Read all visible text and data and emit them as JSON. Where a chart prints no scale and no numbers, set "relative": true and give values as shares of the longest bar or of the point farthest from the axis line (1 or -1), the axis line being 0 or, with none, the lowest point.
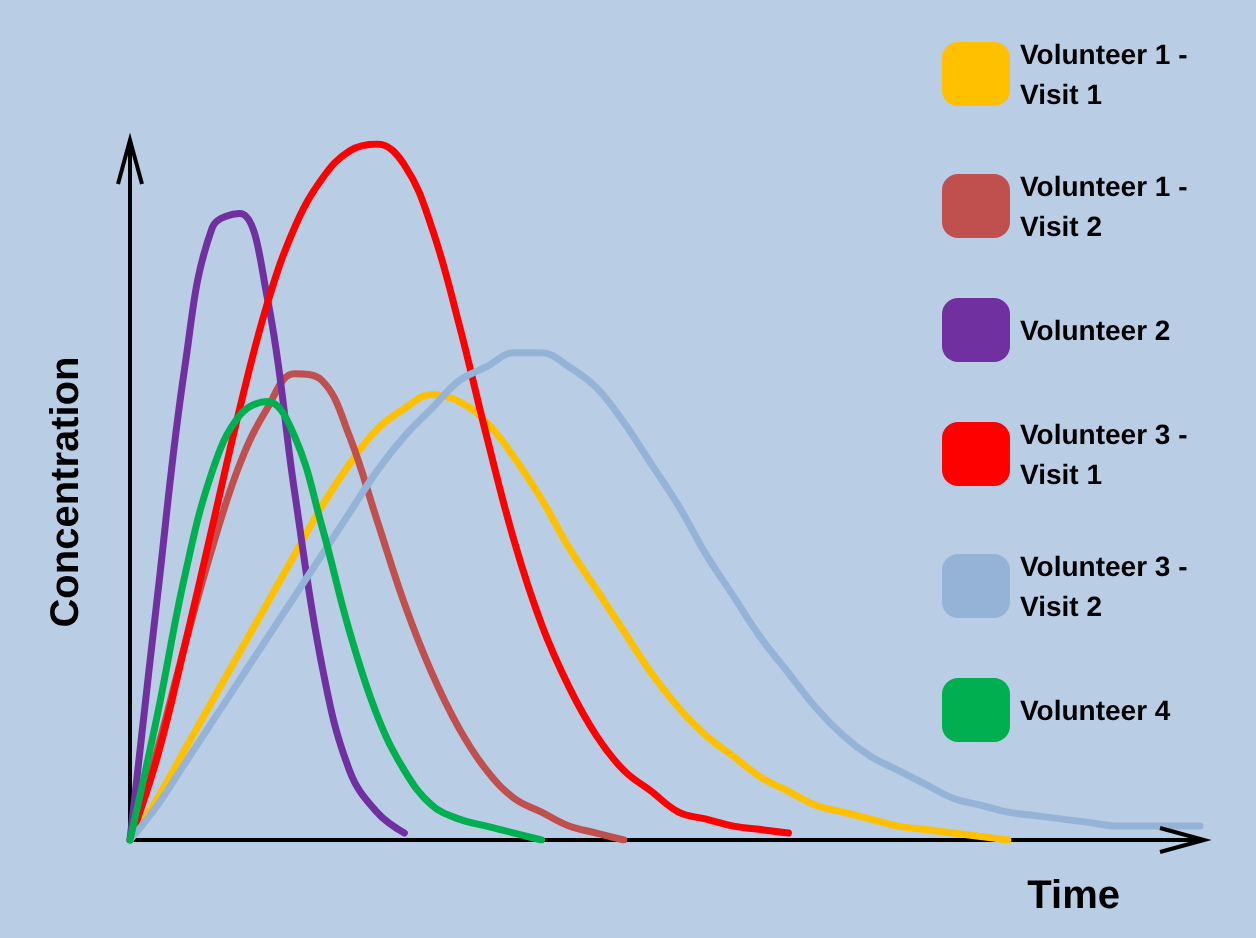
{
  "chart_data": {
    "type": "line",
    "relative": true,
    "xlabel": "Time",
    "ylabel": "Concentration",
    "legend": "right",
    "grid": false,
    "marker": "none",
    "line_style": "solid",
    "categories": [
      null,
      null,
      null,
      null,
      null,
      null,
      null,
      null,
      null,
      null,
      null,
      null,
      null,
      null,
      null,
      null,
      null,
      null,
      null,
      null,
      null,
      null,
      null,
      null,
      null,
      null,
      null,
      null,
      null,
      null,
      null,
      null,
      null,
      null,
      null,
      null,
      null,
      null,
      null,
      null
    ],
    "series": [
      {
        "name": "Volunteer 1 - Visit 1",
        "color": "#ffc000",
        "values": [
          0,
          0.06,
          0.13,
          0.2,
          0.27,
          0.34,
          0.41,
          0.48,
          0.54,
          0.59,
          0.62,
          0.64,
          0.63,
          0.6,
          0.55,
          0.49,
          0.42,
          0.36,
          0.3,
          0.24,
          0.19,
          0.15,
          0.12,
          0.09,
          0.07,
          0.05,
          0.04,
          0.03,
          0.02,
          0.015,
          0.01,
          0.005,
          0,
          null,
          null,
          null,
          null,
          null,
          null,
          null
        ]
      },
      {
        "name": "Volunteer 1 - Visit 2",
        "color": "#c0504d",
        "values": [
          0,
          0.13,
          0.28,
          0.42,
          0.54,
          0.62,
          0.67,
          0.66,
          0.58,
          0.46,
          0.34,
          0.24,
          0.16,
          0.1,
          0.06,
          0.04,
          0.02,
          0.01,
          0,
          null,
          null,
          null,
          null,
          null,
          null,
          null,
          null,
          null,
          null,
          null,
          null,
          null,
          null,
          null,
          null,
          null,
          null,
          null,
          null,
          null
        ]
      },
      {
        "name": "Volunteer 2",
        "color": "#7030a0",
        "values": [
          0,
          0.35,
          0.68,
          0.88,
          0.9,
          0.78,
          0.5,
          0.25,
          0.1,
          0.04,
          0.01,
          null,
          null,
          null,
          null,
          null,
          null,
          null,
          null,
          null,
          null,
          null,
          null,
          null,
          null,
          null,
          null,
          null,
          null,
          null,
          null,
          null,
          null,
          null,
          null,
          null,
          null,
          null,
          null,
          null
        ]
      },
      {
        "name": "Volunteer 3 - Visit 1",
        "color": "#ff0000",
        "values": [
          0,
          0.12,
          0.28,
          0.45,
          0.62,
          0.77,
          0.88,
          0.95,
          0.99,
          1,
          0.97,
          0.88,
          0.74,
          0.58,
          0.43,
          0.31,
          0.22,
          0.15,
          0.1,
          0.07,
          0.04,
          0.03,
          0.02,
          0.015,
          0.01,
          null,
          null,
          null,
          null,
          null,
          null,
          null,
          null,
          null,
          null,
          null,
          null,
          null,
          null,
          null
        ]
      },
      {
        "name": "Volunteer 3 - Visit 2",
        "color": "#95b3d7",
        "values": [
          0,
          0.05,
          0.11,
          0.17,
          0.23,
          0.29,
          0.35,
          0.41,
          0.47,
          0.53,
          0.58,
          0.62,
          0.66,
          0.68,
          0.7,
          0.7,
          0.68,
          0.65,
          0.6,
          0.54,
          0.48,
          0.41,
          0.35,
          0.29,
          0.24,
          0.19,
          0.15,
          0.12,
          0.1,
          0.08,
          0.06,
          0.05,
          0.04,
          0.035,
          0.03,
          0.025,
          0.02,
          0.02,
          0.02,
          0.02
        ]
      },
      {
        "name": "Volunteer 4",
        "color": "#00b050",
        "values": [
          0,
          0.18,
          0.38,
          0.53,
          0.61,
          0.63,
          0.58,
          0.45,
          0.3,
          0.18,
          0.1,
          0.05,
          0.03,
          0.02,
          0.01,
          0,
          null,
          null,
          null,
          null,
          null,
          null,
          null,
          null,
          null,
          null,
          null,
          null,
          null,
          null,
          null,
          null,
          null,
          null,
          null,
          null,
          null,
          null,
          null,
          null
        ]
      }
    ]
  }
}
